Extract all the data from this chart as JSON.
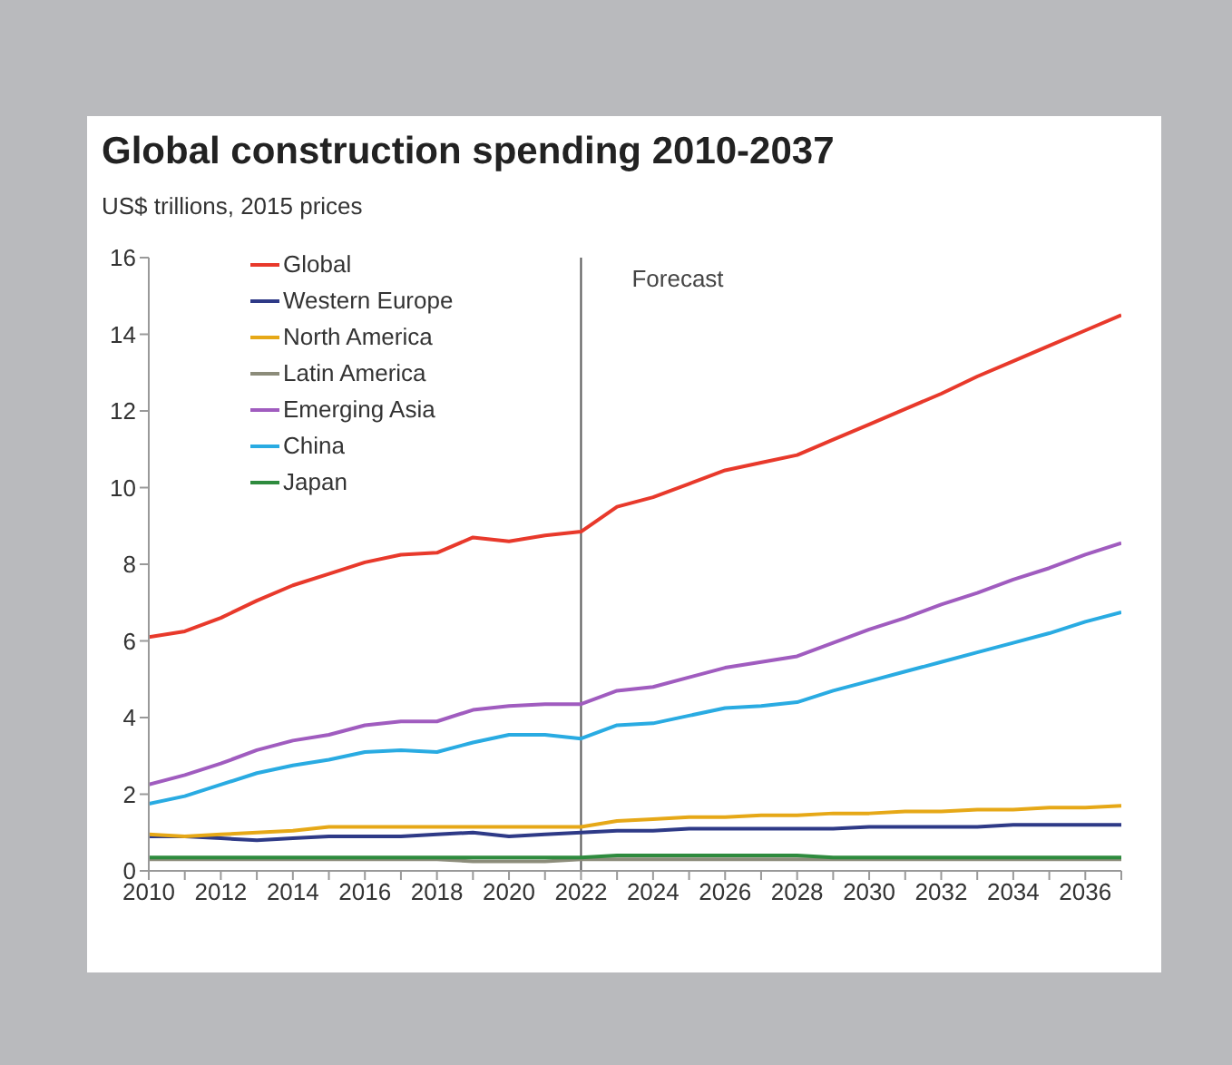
{
  "chart_data": {
    "type": "line",
    "title": "Global construction spending 2010-2037",
    "subtitle": "US$ trillions, 2015 prices",
    "x": [
      2010,
      2011,
      2012,
      2013,
      2014,
      2015,
      2016,
      2017,
      2018,
      2019,
      2020,
      2021,
      2022,
      2023,
      2024,
      2025,
      2026,
      2027,
      2028,
      2029,
      2030,
      2031,
      2032,
      2033,
      2034,
      2035,
      2036,
      2037
    ],
    "series": [
      {
        "name": "Global",
        "color": "#e8392b",
        "values": [
          6.1,
          6.25,
          6.6,
          7.05,
          7.45,
          7.75,
          8.05,
          8.25,
          8.3,
          8.7,
          8.6,
          8.75,
          8.85,
          9.5,
          9.75,
          10.1,
          10.45,
          10.65,
          10.85,
          11.25,
          11.65,
          12.05,
          12.45,
          12.9,
          13.3,
          13.7,
          14.1,
          14.5
        ]
      },
      {
        "name": "Western Europe",
        "color": "#2e3a87",
        "values": [
          0.9,
          0.9,
          0.85,
          0.8,
          0.85,
          0.9,
          0.9,
          0.9,
          0.95,
          1.0,
          0.9,
          0.95,
          1.0,
          1.05,
          1.05,
          1.1,
          1.1,
          1.1,
          1.1,
          1.1,
          1.15,
          1.15,
          1.15,
          1.15,
          1.2,
          1.2,
          1.2,
          1.2
        ]
      },
      {
        "name": "North America",
        "color": "#e6a817",
        "values": [
          0.95,
          0.9,
          0.95,
          1.0,
          1.05,
          1.15,
          1.15,
          1.15,
          1.15,
          1.15,
          1.15,
          1.15,
          1.15,
          1.3,
          1.35,
          1.4,
          1.4,
          1.45,
          1.45,
          1.5,
          1.5,
          1.55,
          1.55,
          1.6,
          1.6,
          1.65,
          1.65,
          1.7
        ]
      },
      {
        "name": "Latin America",
        "color": "#8c8c7a",
        "values": [
          0.3,
          0.3,
          0.3,
          0.3,
          0.3,
          0.3,
          0.3,
          0.3,
          0.3,
          0.25,
          0.25,
          0.25,
          0.3,
          0.3,
          0.3,
          0.3,
          0.3,
          0.3,
          0.3,
          0.3,
          0.3,
          0.3,
          0.3,
          0.3,
          0.3,
          0.3,
          0.3,
          0.3
        ]
      },
      {
        "name": "Emerging Asia",
        "color": "#a05cbf",
        "values": [
          2.25,
          2.5,
          2.8,
          3.15,
          3.4,
          3.55,
          3.8,
          3.9,
          3.9,
          4.2,
          4.3,
          4.35,
          4.35,
          4.7,
          4.8,
          5.05,
          5.3,
          5.45,
          5.6,
          5.95,
          6.3,
          6.6,
          6.95,
          7.25,
          7.6,
          7.9,
          8.25,
          8.55
        ]
      },
      {
        "name": "China",
        "color": "#29abe2",
        "values": [
          1.75,
          1.95,
          2.25,
          2.55,
          2.75,
          2.9,
          3.1,
          3.15,
          3.1,
          3.35,
          3.55,
          3.55,
          3.45,
          3.8,
          3.85,
          4.05,
          4.25,
          4.3,
          4.4,
          4.7,
          4.95,
          5.2,
          5.45,
          5.7,
          5.95,
          6.2,
          6.5,
          6.75
        ]
      },
      {
        "name": "Japan",
        "color": "#2e8b3e",
        "values": [
          0.35,
          0.35,
          0.35,
          0.35,
          0.35,
          0.35,
          0.35,
          0.35,
          0.35,
          0.35,
          0.35,
          0.35,
          0.35,
          0.4,
          0.4,
          0.4,
          0.4,
          0.4,
          0.4,
          0.35,
          0.35,
          0.35,
          0.35,
          0.35,
          0.35,
          0.35,
          0.35,
          0.35
        ]
      }
    ],
    "xlim": [
      2010,
      2037
    ],
    "xticks": [
      2010,
      {
        "value": 2011,
        "label": null
      },
      2012,
      {
        "value": 2013,
        "label": null
      },
      2014,
      {
        "value": 2015,
        "label": null
      },
      2016,
      {
        "value": 2017,
        "label": null
      },
      2018,
      {
        "value": 2019,
        "label": null
      },
      2020,
      {
        "value": 2021,
        "label": null
      },
      2022,
      {
        "value": 2023,
        "label": null
      },
      2024,
      {
        "value": 2025,
        "label": null
      },
      2026,
      {
        "value": 2027,
        "label": null
      },
      2028,
      {
        "value": 2029,
        "label": null
      },
      2030,
      {
        "value": 2031,
        "label": null
      },
      2032,
      {
        "value": 2033,
        "label": null
      },
      2034,
      {
        "value": 2035,
        "label": null
      },
      2036,
      {
        "value": 2037,
        "label": null
      }
    ],
    "ylim": [
      0,
      16
    ],
    "yticks": [
      0,
      2,
      4,
      6,
      8,
      10,
      12,
      14,
      16
    ],
    "ref_lines": [
      {
        "axis": "x",
        "value": 2022,
        "label": "Forecast",
        "color": "#555555"
      }
    ],
    "grid": false,
    "legend": "top left",
    "marker": "none",
    "line_style": "solid"
  }
}
